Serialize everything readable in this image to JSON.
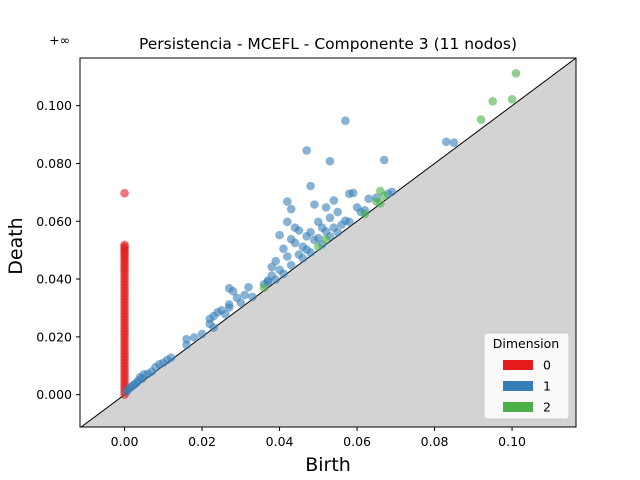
{
  "chart_data": {
    "type": "scatter",
    "title": "Persistencia - MCEFL - Componente 3 (11 nodos)",
    "xlabel": "Birth",
    "ylabel": "Death",
    "xlim": [
      -0.0115,
      0.1165
    ],
    "ylim": [
      -0.0112,
      0.1165
    ],
    "xticks": [
      0.0,
      0.02,
      0.04,
      0.06,
      0.08,
      0.1
    ],
    "xtick_labels": [
      "0.00",
      "0.02",
      "0.04",
      "0.06",
      "0.08",
      "0.10"
    ],
    "yticks": [
      0.0,
      0.02,
      0.04,
      0.06,
      0.08,
      0.1
    ],
    "ytick_labels": [
      "0.000",
      "0.020",
      "0.040",
      "0.060",
      "0.080",
      "0.100"
    ],
    "infinity_label": "+∞",
    "infinity_value": 0.1228,
    "diagonal": true,
    "grid": false,
    "legend": {
      "title": "Dimension",
      "position": "lower-right"
    },
    "series": [
      {
        "name": "0",
        "color": "#e41a1c",
        "points": [
          [
            0,
            0.1228
          ],
          [
            0,
            0.0697
          ],
          [
            0,
            0.0518
          ],
          [
            0,
            0.0512
          ],
          [
            0,
            0.0505
          ],
          [
            0,
            0.0498
          ],
          [
            0,
            0.049
          ],
          [
            0,
            0.0482
          ],
          [
            0,
            0.0474
          ],
          [
            0,
            0.0465
          ],
          [
            0,
            0.0456
          ],
          [
            0,
            0.0447
          ],
          [
            0,
            0.0438
          ],
          [
            0,
            0.043
          ],
          [
            0,
            0.042
          ],
          [
            0,
            0.041
          ],
          [
            0,
            0.04
          ],
          [
            0,
            0.039
          ],
          [
            0,
            0.038
          ],
          [
            0,
            0.037
          ],
          [
            0,
            0.036
          ],
          [
            0,
            0.035
          ],
          [
            0,
            0.034
          ],
          [
            0,
            0.033
          ],
          [
            0,
            0.032
          ],
          [
            0,
            0.031
          ],
          [
            0,
            0.03
          ],
          [
            0,
            0.029
          ],
          [
            0,
            0.028
          ],
          [
            0,
            0.027
          ],
          [
            0,
            0.026
          ],
          [
            0,
            0.025
          ],
          [
            0,
            0.024
          ],
          [
            0,
            0.023
          ],
          [
            0,
            0.022
          ],
          [
            0,
            0.021
          ],
          [
            0,
            0.02
          ],
          [
            0,
            0.019
          ],
          [
            0,
            0.018
          ],
          [
            0,
            0.017
          ],
          [
            0,
            0.016
          ],
          [
            0,
            0.015
          ],
          [
            0,
            0.014
          ],
          [
            0,
            0.013
          ],
          [
            0,
            0.012
          ],
          [
            0,
            0.011
          ],
          [
            0,
            0.01
          ],
          [
            0,
            0.009
          ],
          [
            0,
            0.008
          ],
          [
            0,
            0.007
          ],
          [
            0,
            0.006
          ],
          [
            0,
            0.005
          ],
          [
            0,
            0.004
          ],
          [
            0,
            0.003
          ],
          [
            0,
            0.002
          ],
          [
            0,
            0.001
          ],
          [
            0,
            0.0
          ]
        ]
      },
      {
        "name": "1",
        "color": "#377eb8",
        "points": [
          [
            0.0005,
            0.001
          ],
          [
            0.001,
            0.0018
          ],
          [
            0.0015,
            0.0025
          ],
          [
            0.002,
            0.003
          ],
          [
            0.0025,
            0.0035
          ],
          [
            0.003,
            0.004
          ],
          [
            0.0035,
            0.0048
          ],
          [
            0.004,
            0.006
          ],
          [
            0.0045,
            0.0055
          ],
          [
            0.005,
            0.007
          ],
          [
            0.006,
            0.0072
          ],
          [
            0.007,
            0.008
          ],
          [
            0.008,
            0.0095
          ],
          [
            0.009,
            0.0105
          ],
          [
            0.01,
            0.011
          ],
          [
            0.011,
            0.012
          ],
          [
            0.012,
            0.0128
          ],
          [
            0.016,
            0.0192
          ],
          [
            0.016,
            0.0172
          ],
          [
            0.018,
            0.0198
          ],
          [
            0.02,
            0.021
          ],
          [
            0.022,
            0.0262
          ],
          [
            0.022,
            0.0245
          ],
          [
            0.023,
            0.0272
          ],
          [
            0.023,
            0.0232
          ],
          [
            0.024,
            0.0285
          ],
          [
            0.025,
            0.0292
          ],
          [
            0.026,
            0.0278
          ],
          [
            0.027,
            0.0368
          ],
          [
            0.027,
            0.0312
          ],
          [
            0.027,
            0.0302
          ],
          [
            0.028,
            0.0358
          ],
          [
            0.029,
            0.0335
          ],
          [
            0.03,
            0.0318
          ],
          [
            0.031,
            0.0345
          ],
          [
            0.032,
            0.0372
          ],
          [
            0.033,
            0.0338
          ],
          [
            0.036,
            0.0382
          ],
          [
            0.037,
            0.039
          ],
          [
            0.037,
            0.0395
          ],
          [
            0.038,
            0.0442
          ],
          [
            0.038,
            0.0412
          ],
          [
            0.039,
            0.0462
          ],
          [
            0.039,
            0.0398
          ],
          [
            0.04,
            0.0552
          ],
          [
            0.04,
            0.0432
          ],
          [
            0.041,
            0.0505
          ],
          [
            0.041,
            0.0418
          ],
          [
            0.042,
            0.0668
          ],
          [
            0.042,
            0.0598
          ],
          [
            0.042,
            0.0478
          ],
          [
            0.043,
            0.0642
          ],
          [
            0.043,
            0.0538
          ],
          [
            0.043,
            0.0448
          ],
          [
            0.044,
            0.0578
          ],
          [
            0.044,
            0.0525
          ],
          [
            0.045,
            0.0568
          ],
          [
            0.045,
            0.0485
          ],
          [
            0.046,
            0.0512
          ],
          [
            0.046,
            0.0472
          ],
          [
            0.047,
            0.0845
          ],
          [
            0.047,
            0.0548
          ],
          [
            0.047,
            0.0502
          ],
          [
            0.048,
            0.0722
          ],
          [
            0.048,
            0.0562
          ],
          [
            0.048,
            0.0492
          ],
          [
            0.049,
            0.0658
          ],
          [
            0.049,
            0.0535
          ],
          [
            0.05,
            0.0598
          ],
          [
            0.05,
            0.0542
          ],
          [
            0.051,
            0.0578
          ],
          [
            0.051,
            0.052
          ],
          [
            0.052,
            0.0648
          ],
          [
            0.052,
            0.0565
          ],
          [
            0.053,
            0.0808
          ],
          [
            0.053,
            0.0612
          ],
          [
            0.053,
            0.0548
          ],
          [
            0.054,
            0.0672
          ],
          [
            0.054,
            0.0578
          ],
          [
            0.055,
            0.0632
          ],
          [
            0.055,
            0.0562
          ],
          [
            0.056,
            0.0588
          ],
          [
            0.057,
            0.0948
          ],
          [
            0.057,
            0.0602
          ],
          [
            0.058,
            0.0695
          ],
          [
            0.058,
            0.0598
          ],
          [
            0.059,
            0.0698
          ],
          [
            0.06,
            0.0648
          ],
          [
            0.061,
            0.0632
          ],
          [
            0.062,
            0.0638
          ],
          [
            0.063,
            0.0678
          ],
          [
            0.065,
            0.0682
          ],
          [
            0.067,
            0.0812
          ],
          [
            0.068,
            0.0695
          ],
          [
            0.069,
            0.0702
          ],
          [
            0.083,
            0.0875
          ],
          [
            0.085,
            0.0872
          ]
        ]
      },
      {
        "name": "2",
        "color": "#4daf4a",
        "points": [
          [
            0.036,
            0.037
          ],
          [
            0.05,
            0.0512
          ],
          [
            0.052,
            0.0538
          ],
          [
            0.062,
            0.0625
          ],
          [
            0.065,
            0.0668
          ],
          [
            0.066,
            0.0705
          ],
          [
            0.066,
            0.0662
          ],
          [
            0.067,
            0.0688
          ],
          [
            0.092,
            0.0952
          ],
          [
            0.095,
            0.1015
          ],
          [
            0.1,
            0.1022
          ],
          [
            0.101,
            0.1112
          ]
        ]
      }
    ]
  }
}
